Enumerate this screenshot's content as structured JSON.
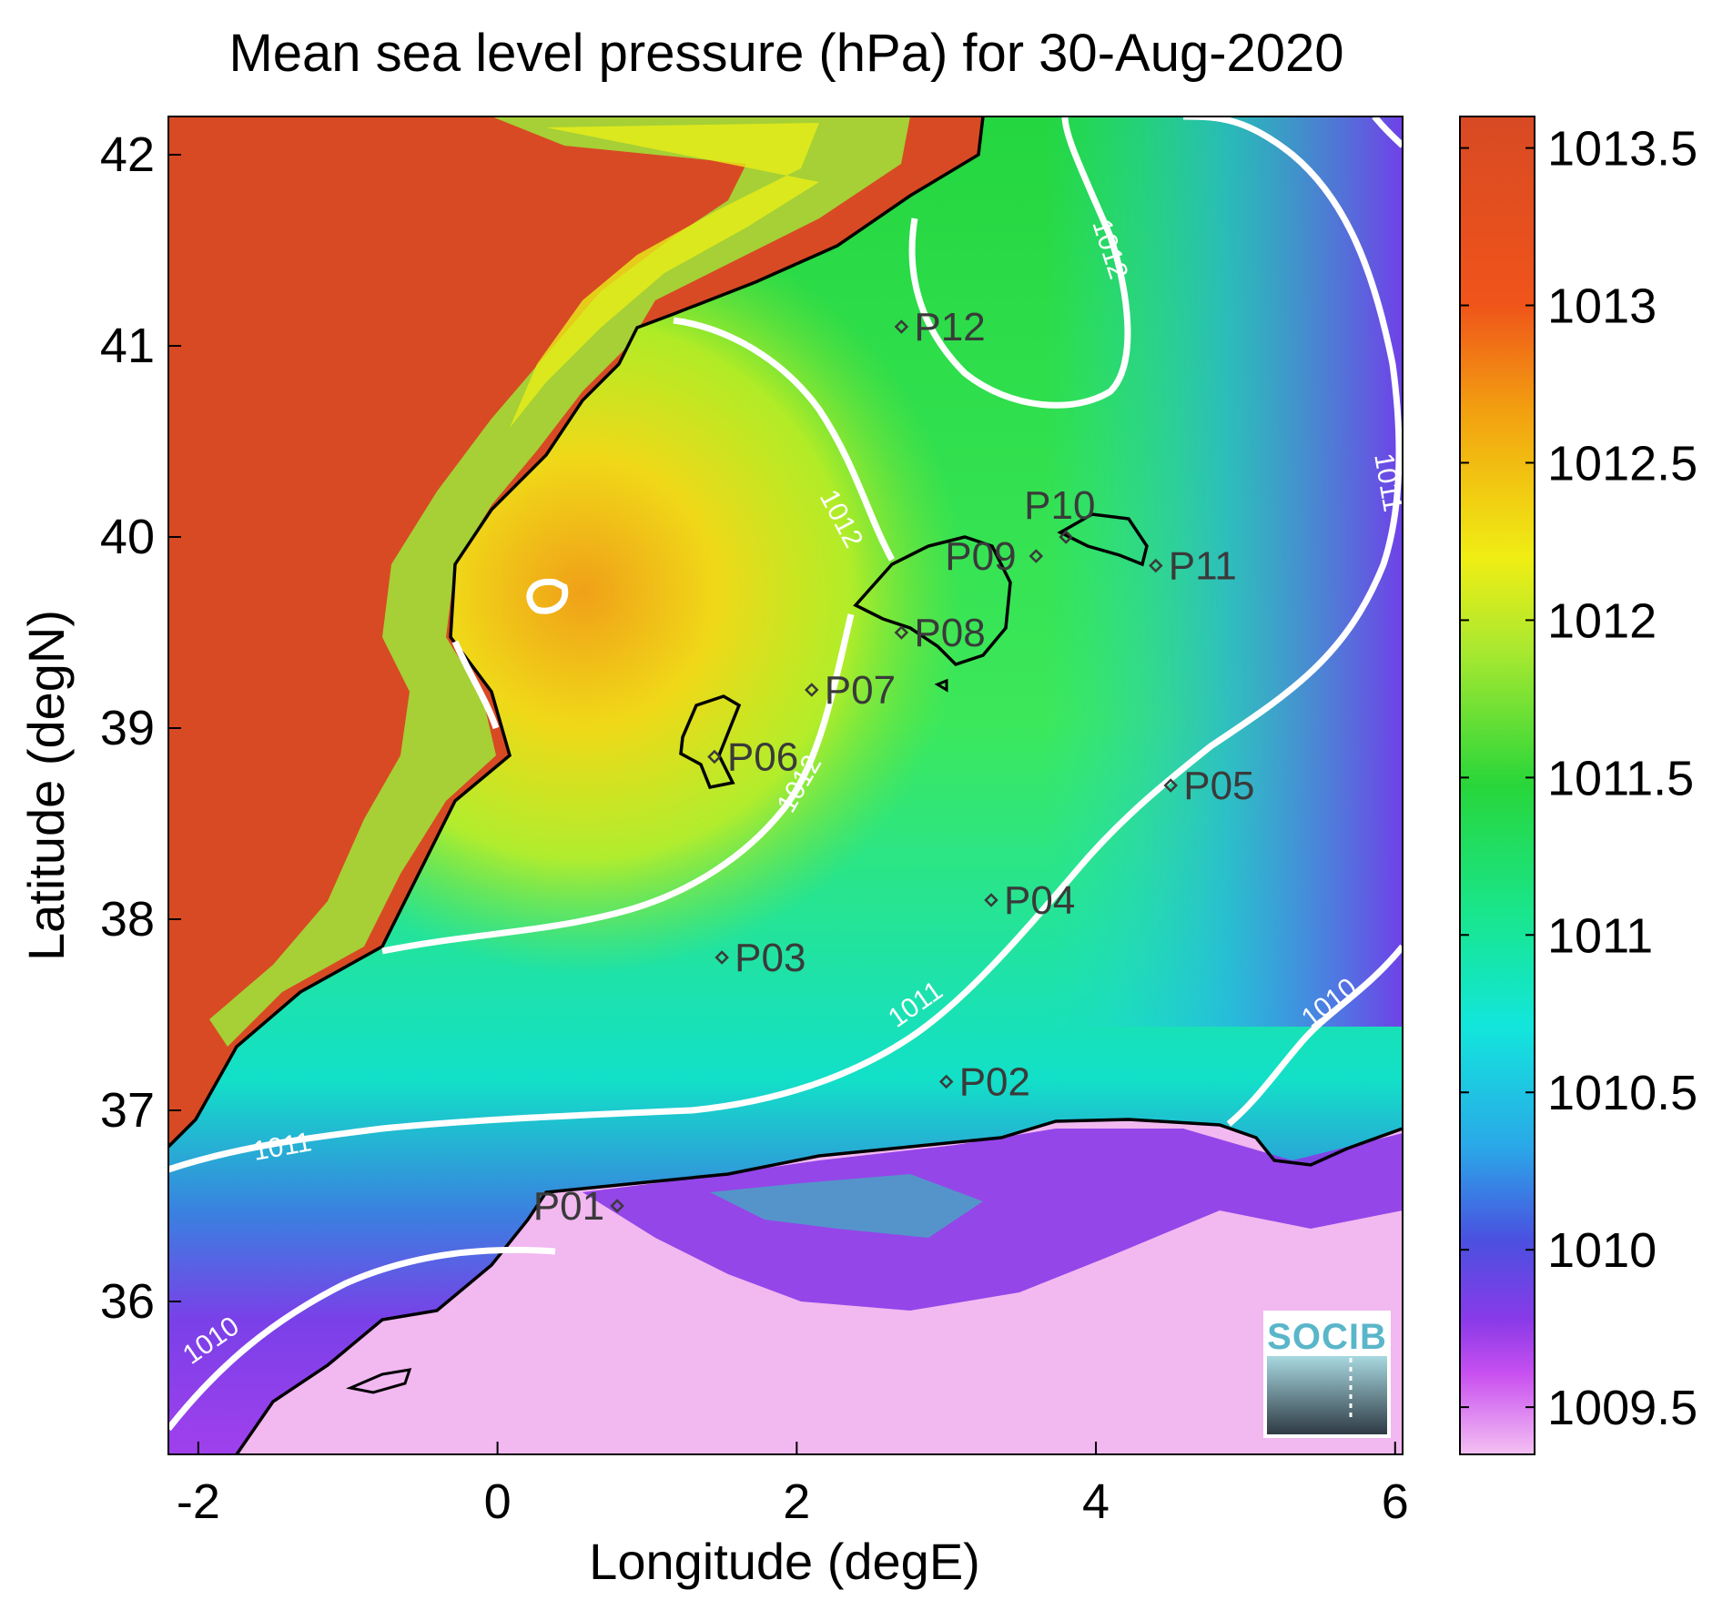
{
  "title": "Mean sea level pressure (hPa) for 30-Aug-2020",
  "xlabel": "Longitude (degE)",
  "ylabel": "Latitude (degN)",
  "x_ticks": [
    "-2",
    "0",
    "2",
    "4",
    "6"
  ],
  "y_ticks": [
    "42",
    "41",
    "40",
    "39",
    "38",
    "37",
    "36"
  ],
  "colorbar": {
    "ticks": [
      "1013.5",
      "1013",
      "1012.5",
      "1012",
      "1011.5",
      "1011",
      "1010.5",
      "1010",
      "1009.5"
    ],
    "colors": {
      "1013.5": "#d84a24",
      "1013": "#f08a1a",
      "1012.5": "#e8f012",
      "1012": "#2cd63a",
      "1011.5": "#18e6a0",
      "1011": "#14e6e0",
      "1010.5": "#3a6ee0",
      "1010": "#8a3ae8",
      "1009.5": "#f2b8f0"
    }
  },
  "contour_labels": [
    "1012",
    "1012",
    "1012",
    "1011",
    "1011",
    "1011",
    "1010",
    "1010"
  ],
  "stations": [
    {
      "id": "P01",
      "lon": 0.8,
      "lat": 36.5
    },
    {
      "id": "P02",
      "lon": 3.0,
      "lat": 37.15
    },
    {
      "id": "P03",
      "lon": 1.5,
      "lat": 37.8
    },
    {
      "id": "P04",
      "lon": 3.3,
      "lat": 38.1
    },
    {
      "id": "P05",
      "lon": 4.5,
      "lat": 38.7
    },
    {
      "id": "P06",
      "lon": 1.45,
      "lat": 38.85
    },
    {
      "id": "P07",
      "lon": 2.1,
      "lat": 39.2
    },
    {
      "id": "P08",
      "lon": 2.7,
      "lat": 39.5
    },
    {
      "id": "P09",
      "lon": 3.6,
      "lat": 39.9
    },
    {
      "id": "P10",
      "lon": 3.8,
      "lat": 40.0
    },
    {
      "id": "P11",
      "lon": 4.4,
      "lat": 39.85
    },
    {
      "id": "P12",
      "lon": 2.7,
      "lat": 41.1
    }
  ],
  "logo_text": "SOCIB"
}
